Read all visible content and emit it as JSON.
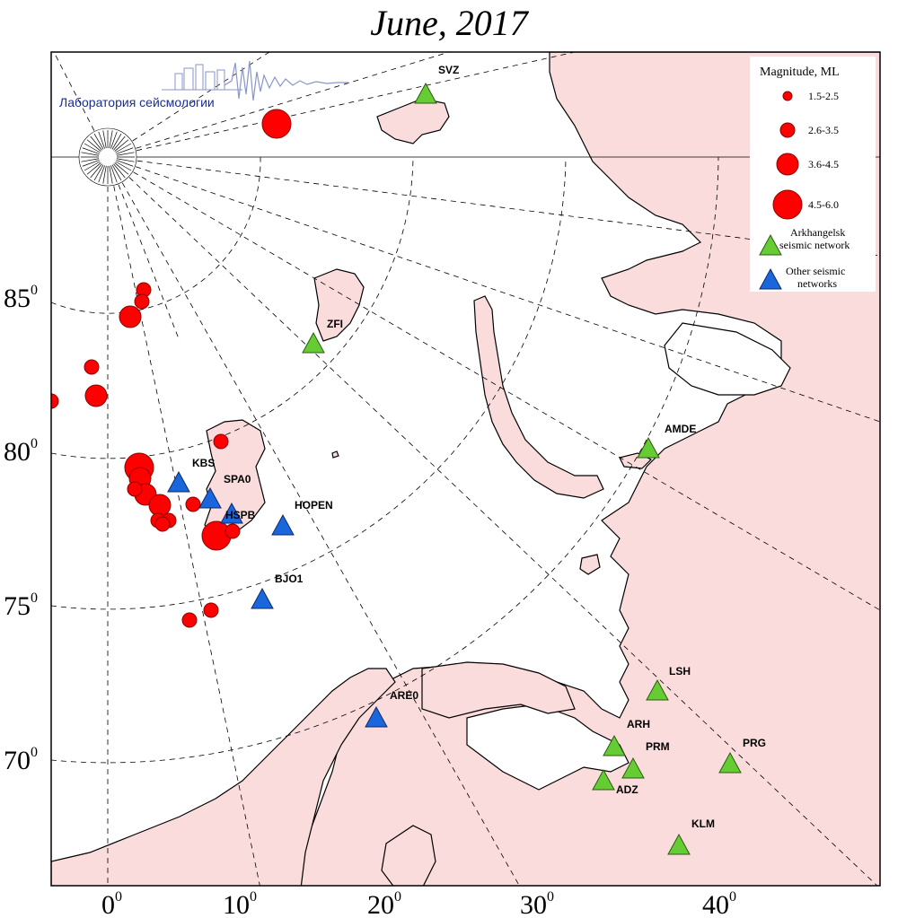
{
  "title": "June, 2017",
  "logo": {
    "text": "Лаборатория сейсмологии"
  },
  "latitude_labels": [
    "85",
    "80",
    "75",
    "70"
  ],
  "longitude_labels": [
    "0",
    "10",
    "20",
    "30",
    "40"
  ],
  "degree_symbol": "0",
  "legend": {
    "title": "Magnitude, ML",
    "magnitude_classes": [
      "1.5-2.5",
      "2.6-3.5",
      "3.6-4.5",
      "4.5-6.0"
    ],
    "arkhangelsk_line1": "Arkhangelsk",
    "arkhangelsk_line2": "seismic network",
    "other_line1": "Other seismic",
    "other_line2": "networks"
  },
  "colors": {
    "land": "#fbdcdc",
    "sea": "#ffffff",
    "event": "#ff0000",
    "arkhangelsk_station": "#66cc33",
    "other_station": "#1a66dd"
  },
  "stations": [
    {
      "code": "SVZ",
      "network": "arkhangelsk"
    },
    {
      "code": "ZFI",
      "network": "arkhangelsk"
    },
    {
      "code": "AMDE",
      "network": "arkhangelsk"
    },
    {
      "code": "KBS",
      "network": "other"
    },
    {
      "code": "SPA0",
      "network": "other"
    },
    {
      "code": "HSPB",
      "network": "other"
    },
    {
      "code": "HOPEN",
      "network": "other"
    },
    {
      "code": "BJO1",
      "network": "other"
    },
    {
      "code": "ARE0",
      "network": "other"
    },
    {
      "code": "LSH",
      "network": "arkhangelsk"
    },
    {
      "code": "ARH",
      "network": "arkhangelsk"
    },
    {
      "code": "PRM",
      "network": "arkhangelsk"
    },
    {
      "code": "ADZ",
      "network": "arkhangelsk"
    },
    {
      "code": "PRG",
      "network": "arkhangelsk"
    },
    {
      "code": "KLM",
      "network": "arkhangelsk"
    }
  ],
  "event_magnitude_classes": [
    "4.5-6.0",
    "2.6-3.5",
    "2.6-3.5",
    "3.6-4.5",
    "2.6-3.5",
    "3.6-4.5",
    "2.6-3.5",
    "4.5-6.0",
    "3.6-4.5",
    "3.6-4.5",
    "3.6-4.5",
    "2.6-3.5",
    "2.6-3.5",
    "2.6-3.5",
    "4.5-6.0",
    "2.6-3.5",
    "2.6-3.5",
    "2.6-3.5",
    "2.6-3.5",
    "2.6-3.5",
    "2.6-3.5"
  ]
}
